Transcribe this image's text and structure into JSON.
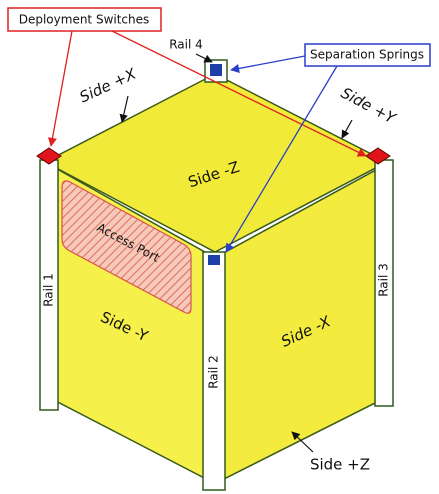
{
  "callouts": {
    "deployment_switches": "Deployment Switches",
    "separation_springs": "Separation Springs"
  },
  "rails": [
    "Rail 1",
    "Rail 2",
    "Rail 3",
    "Rail 4"
  ],
  "sides": {
    "plus_x": "Side +X",
    "plus_y": "Side +Y",
    "minus_z": "Side -Z",
    "minus_y": "Side -Y",
    "minus_x": "Side -X",
    "plus_z": "Side +Z"
  },
  "access_port": "Access Port"
}
